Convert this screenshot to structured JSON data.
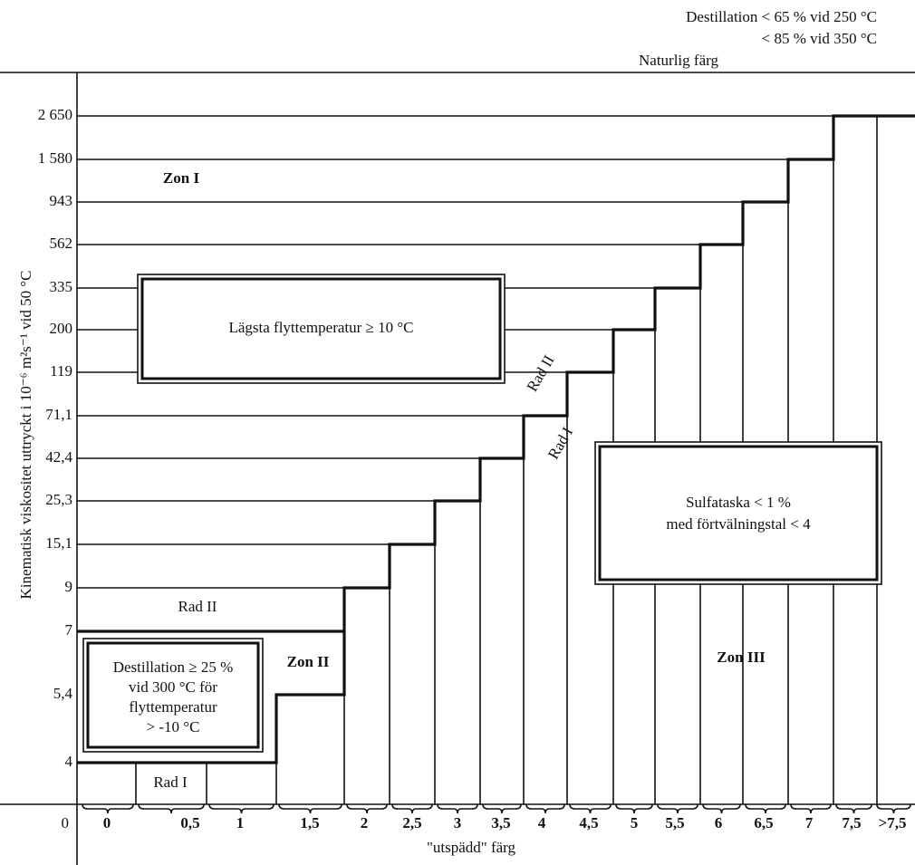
{
  "header": {
    "lines": [
      "Destillation < 65 % vid 250 °C",
      "< 85 % vid 350 °C",
      "Naturlig färg"
    ]
  },
  "y_axis": {
    "title": "Kinematisk viskositet uttryckt i 10⁻⁶ m²s⁻¹ vid 50 °C",
    "labels": [
      "2 650",
      "1 580",
      "943",
      "562",
      "335",
      "200",
      "119",
      "71,1",
      "42,4",
      "25,3",
      "15,1",
      "9",
      "7",
      "5,4",
      "4",
      "0"
    ]
  },
  "x_axis": {
    "title": "\"utspädd\" färg",
    "labels": [
      "0",
      "0,5",
      "1",
      "1,5",
      "2",
      "2,5",
      "3",
      "3,5",
      "4",
      "4,5",
      "5",
      "5,5",
      "6",
      "6,5",
      "7",
      "7,5",
      ">7,5"
    ]
  },
  "zones": [
    "Zon I",
    "Zon II",
    "Zon III"
  ],
  "rows": [
    "Rad II",
    "Rad I",
    "Rad II",
    "Rad I"
  ],
  "boxes": [
    {
      "lines": [
        "Lägsta flyttemperatur  ≥  10 °C"
      ]
    },
    {
      "lines": [
        "Sulfataska < 1 %",
        "med förtvälningstal < 4"
      ]
    },
    {
      "lines": [
        "Destillation  ≥  25 %",
        "vid 300 °C för",
        "flyttemperatur",
        "> -10 °C"
      ]
    }
  ]
}
